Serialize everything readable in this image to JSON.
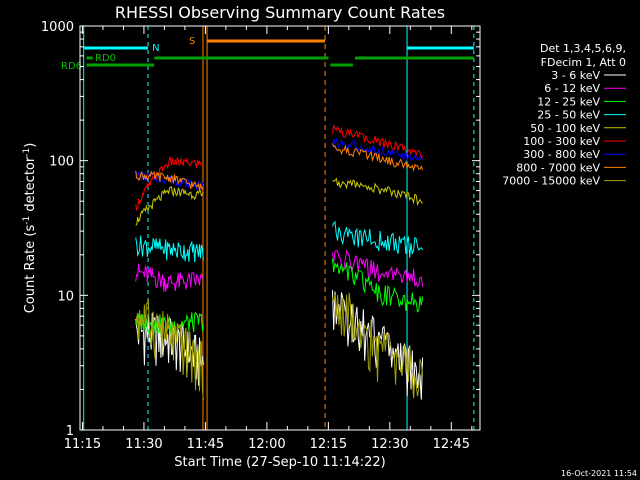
{
  "chart_data": {
    "type": "line",
    "title": "RHESSI Observing Summary Count Rates",
    "xlabel": "Start Time (27-Sep-10 11:14:22)",
    "ylabel_main": "Count Rate (s",
    "ylabel_sup1": "-1",
    "ylabel_mid": " detector",
    "ylabel_sup2": "-1",
    "ylabel_end": ")",
    "yscale": "log",
    "ylim": [
      1,
      1000
    ],
    "xlim": [
      "11:14",
      "12:52"
    ],
    "x_ticks": [
      "11:15",
      "11:30",
      "11:45",
      "12:00",
      "12:15",
      "12:30",
      "12:45"
    ],
    "y_ticks": [
      "1",
      "10",
      "100",
      "1000"
    ],
    "timestamp": "16-Oct-2021 11:54",
    "legend_header": [
      "Det 1,3,4,5,6,9,",
      "FDecim 1, Att 0"
    ],
    "legend_position": "right",
    "flags": [
      {
        "label": "N",
        "color": "#00ffff"
      },
      {
        "label": "S",
        "color": "#ff8000"
      },
      {
        "label": "RD0",
        "color": "#00a000"
      },
      {
        "label": "RD6",
        "color": "#00a000"
      }
    ],
    "series": [
      {
        "name": "3 - 6 keV",
        "color": "#000000",
        "values": {
          "a": [
            5.5,
            4.8,
            3.2
          ],
          "b": [
            9.0,
            4.5,
            2.5
          ]
        }
      },
      {
        "name": "6 - 12 keV",
        "color": "#ff00ff",
        "values": {
          "a": [
            15.0,
            12.5,
            13.0
          ],
          "b": [
            20.0,
            15.0,
            13.5
          ]
        }
      },
      {
        "name": "12 - 25 keV",
        "color": "#00ff00",
        "values": {
          "a": [
            6.5,
            6.0,
            6.5
          ],
          "b": [
            17.0,
            10.5,
            8.5
          ]
        }
      },
      {
        "name": "25 - 50 keV",
        "color": "#00ffff",
        "values": {
          "a": [
            24.0,
            22.0,
            21.0
          ],
          "b": [
            30.0,
            26.0,
            22.0
          ]
        }
      },
      {
        "name": "50 - 100 keV",
        "color": "#c8c800",
        "values": {
          "a": [
            35.0,
            60.0,
            55.0
          ],
          "b": [
            70.0,
            62.0,
            50.0
          ]
        }
      },
      {
        "name": "100 - 300 keV",
        "color": "#ff0000",
        "values": {
          "a": [
            45.0,
            98.0,
            95.0
          ],
          "b": [
            170.0,
            140.0,
            110.0
          ]
        }
      },
      {
        "name": "300 - 800 keV",
        "color": "#0000ff",
        "values": {
          "a": [
            78.0,
            72.0,
            65.0
          ],
          "b": [
            140.0,
            120.0,
            100.0
          ]
        }
      },
      {
        "name": "800 - 7000 keV",
        "color": "#ff8000",
        "values": {
          "a": [
            78.0,
            75.0,
            62.0
          ],
          "b": [
            125.0,
            105.0,
            85.0
          ]
        }
      },
      {
        "name": "7000 - 15000 keV",
        "color": "#a0a000",
        "values": {
          "a": [
            7.5,
            5.0,
            3.0
          ],
          "b": [
            9.5,
            4.0,
            2.5
          ]
        }
      }
    ]
  }
}
